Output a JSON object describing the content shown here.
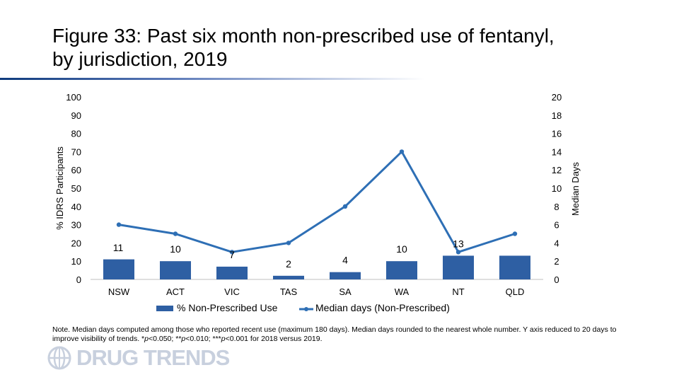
{
  "page": {
    "title_line1": "Figure 33: Past six month non-prescribed use of fentanyl,",
    "title_line2": "by jurisdiction, 2019",
    "note_prefix": "Note. Median days computed among those who reported recent use (maximum 180 days). Median days rounded to the nearest whole number. Y axis reduced to 20 days to improve visibility of trends. *",
    "note_p1": "p",
    "note_mid1": "<0.050; **",
    "note_p2": "p",
    "note_mid2": "<0.010; ***",
    "note_p3": "p",
    "note_suffix": "<0.001 for 2018 versus 2019.",
    "logo_text": "DRUG TRENDS",
    "logo_icon": "globe-logo-icon"
  },
  "chart_data": {
    "type": "bar",
    "categories": [
      "NSW",
      "ACT",
      "VIC",
      "TAS",
      "SA",
      "WA",
      "NT",
      "QLD"
    ],
    "series": [
      {
        "name": "% Non-Prescribed Use",
        "type": "bar",
        "axis": "left",
        "values": [
          11,
          10,
          7,
          2,
          4,
          10,
          13,
          13
        ],
        "labels": [
          "11",
          "10",
          "7",
          "2",
          "4",
          "10",
          "13",
          ""
        ],
        "color": "#2e5fa3"
      },
      {
        "name": "Median days (Non-Prescribed)",
        "type": "line",
        "axis": "right",
        "values": [
          6,
          5,
          3,
          4,
          8,
          14,
          3,
          5
        ],
        "color": "#2e6fb5"
      }
    ],
    "ylabel": "% IDRS Participants",
    "y2label": "Median Days",
    "ylim": [
      0,
      100
    ],
    "y2lim": [
      0,
      20
    ],
    "yticks": [
      "0",
      "10",
      "20",
      "30",
      "40",
      "50",
      "60",
      "70",
      "80",
      "90",
      "100"
    ],
    "y2ticks": [
      "0",
      "2",
      "4",
      "6",
      "8",
      "10",
      "12",
      "14",
      "16",
      "18",
      "20"
    ],
    "grid": false,
    "legend_position": "bottom"
  }
}
